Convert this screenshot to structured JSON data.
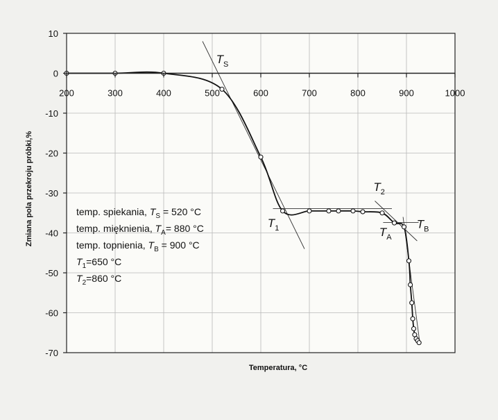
{
  "chart_data": {
    "type": "line",
    "title": "",
    "xlabel": "Temperatura, °C",
    "ylabel": "Zmiana pola przekroju próbki,%",
    "xlim": [
      200,
      1000
    ],
    "ylim": [
      -70,
      10
    ],
    "x_ticks": [
      "200",
      "300",
      "400",
      "500",
      "600",
      "700",
      "800",
      "900",
      "1000"
    ],
    "y_ticks": [
      "10",
      "0",
      "-10",
      "-20",
      "-30",
      "-40",
      "-50",
      "-60",
      "-70"
    ],
    "grid": true,
    "series": [
      {
        "x": [
          200,
          300,
          400,
          520,
          600,
          645,
          700,
          740,
          760,
          790,
          810,
          850,
          875,
          895,
          905,
          908,
          911,
          913,
          915,
          917,
          920,
          923,
          926
        ],
        "y": [
          0,
          0,
          0,
          -4,
          -21,
          -34.5,
          -34.5,
          -34.5,
          -34.5,
          -34.5,
          -34.7,
          -35,
          -37.5,
          -38.5,
          -47,
          -53,
          -57.5,
          -61.5,
          -64,
          -65.5,
          -66.5,
          -67,
          -67.5
        ]
      }
    ],
    "tangent_lines": [
      {
        "from": [
          480,
          8
        ],
        "to": [
          690,
          -44
        ]
      },
      {
        "from": [
          625,
          -33.9
        ],
        "to": [
          870,
          -33.9
        ]
      },
      {
        "from": [
          835,
          -32
        ],
        "to": [
          922,
          -42
        ]
      },
      {
        "from": [
          852,
          -37.4
        ],
        "to": [
          925,
          -37.4
        ]
      },
      {
        "from": [
          893,
          -36
        ],
        "to": [
          928,
          -68
        ]
      }
    ],
    "annotations": [
      {
        "main": "T",
        "sub": "S",
        "x": 508,
        "y": 2.5
      },
      {
        "main": "T",
        "sub": "1",
        "x": 614,
        "y": -38.5
      },
      {
        "main": "T",
        "sub": "2",
        "x": 832,
        "y": -29.5
      },
      {
        "main": "T",
        "sub": "A",
        "x": 844,
        "y": -40.8
      },
      {
        "main": "T",
        "sub": "B",
        "x": 921,
        "y": -38.8
      }
    ],
    "legend": [
      {
        "pre": "temp. spiekania, ",
        "sym": "T",
        "sub": "S",
        "post": " = 520 °C"
      },
      {
        "pre": "temp. mięknienia, ",
        "sym": "T",
        "sub": "A",
        "post": "= 880 °C"
      },
      {
        "pre": "temp. topnienia, ",
        "sym": "T",
        "sub": "B",
        "post": " = 900 °C"
      },
      {
        "pre": "",
        "sym": "T",
        "sub": "1",
        "post": "=650 °C"
      },
      {
        "pre": "",
        "sym": "T",
        "sub": "2",
        "post": "=860 °C"
      }
    ]
  }
}
